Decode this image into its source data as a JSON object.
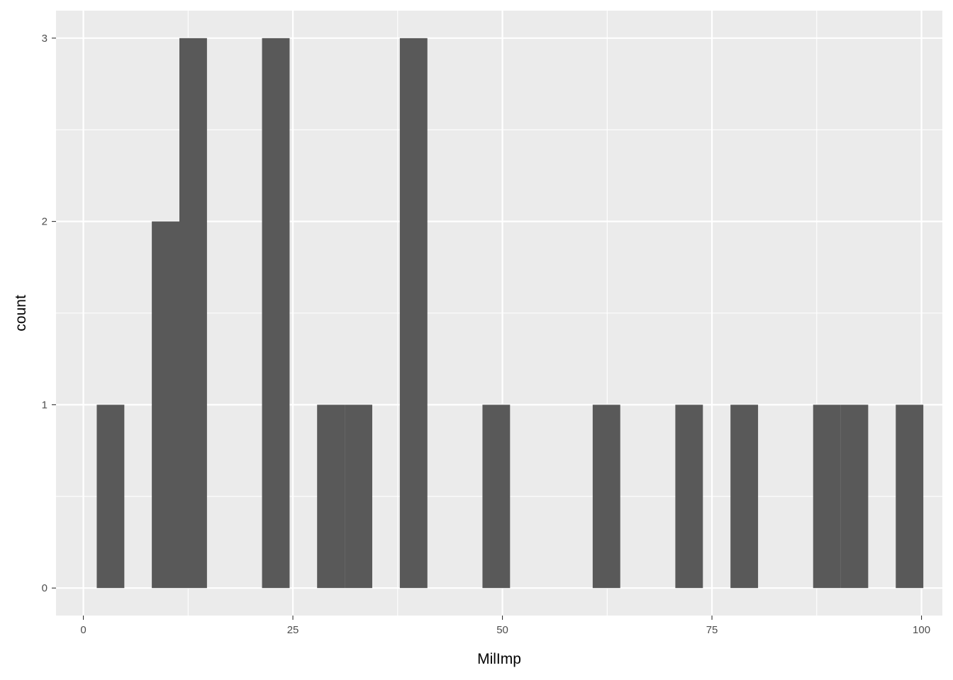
{
  "chart_data": {
    "type": "bar",
    "subtype": "histogram",
    "xlabel": "MilImp",
    "ylabel": "count",
    "xlim": [
      -3.26,
      102.49
    ],
    "ylim": [
      -0.15,
      3.15
    ],
    "x_ticks": [
      0,
      25,
      50,
      75,
      100
    ],
    "x_tick_labels": [
      "0",
      "25",
      "50",
      "75",
      "100"
    ],
    "y_ticks": [
      0,
      1,
      2,
      3
    ],
    "y_tick_labels": [
      "0",
      "1",
      "2",
      "3"
    ],
    "bin_width": 3.29,
    "bins": [
      {
        "x_start": 1.6,
        "x_end": 4.89,
        "count": 1
      },
      {
        "x_start": 8.17,
        "x_end": 11.46,
        "count": 2
      },
      {
        "x_start": 11.46,
        "x_end": 14.75,
        "count": 3
      },
      {
        "x_start": 21.32,
        "x_end": 24.61,
        "count": 3
      },
      {
        "x_start": 27.89,
        "x_end": 31.18,
        "count": 1
      },
      {
        "x_start": 31.18,
        "x_end": 34.47,
        "count": 1
      },
      {
        "x_start": 37.76,
        "x_end": 41.05,
        "count": 3
      },
      {
        "x_start": 47.62,
        "x_end": 50.91,
        "count": 1
      },
      {
        "x_start": 60.77,
        "x_end": 64.06,
        "count": 1
      },
      {
        "x_start": 70.63,
        "x_end": 73.92,
        "count": 1
      },
      {
        "x_start": 77.21,
        "x_end": 80.5,
        "count": 1
      },
      {
        "x_start": 87.07,
        "x_end": 90.36,
        "count": 1
      },
      {
        "x_start": 90.36,
        "x_end": 93.64,
        "count": 1
      },
      {
        "x_start": 96.93,
        "x_end": 100.22,
        "count": 1
      }
    ],
    "grid": true,
    "legend": "none",
    "colors": {
      "panel_background": "#ebebeb",
      "grid_major": "#ffffff",
      "bar_fill": "#595959",
      "tick_text": "#4d4d4d",
      "axis_title": "#000000"
    }
  }
}
